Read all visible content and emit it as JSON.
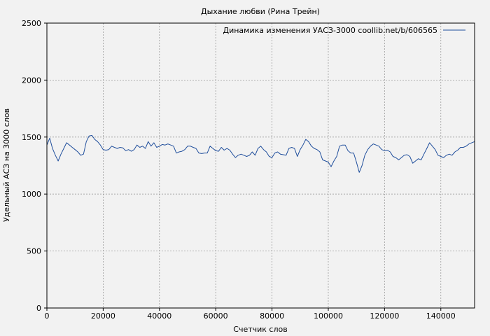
{
  "chart_data": {
    "type": "line",
    "title": "Дыхание любви (Рина Трейн)",
    "xlabel": "Счетчик слов",
    "ylabel": "Удельный АСЗ на 3000 слов",
    "xlim": [
      0,
      152000
    ],
    "ylim": [
      0,
      2500
    ],
    "x_ticks": [
      0,
      20000,
      40000,
      60000,
      80000,
      100000,
      120000,
      140000
    ],
    "x_tick_labels": [
      "0",
      "20000",
      "40000",
      "60000",
      "80000",
      "100000",
      "120000",
      "140000"
    ],
    "y_ticks": [
      0,
      500,
      1000,
      1500,
      2000,
      2500
    ],
    "y_tick_labels": [
      "0",
      "500",
      "1000",
      "1500",
      "2000",
      "2500"
    ],
    "grid": true,
    "legend_position": "top-right",
    "colors": {
      "line": "#1f4e9c",
      "background": "#f2f2f2",
      "plot_background": "#f2f2f2",
      "grid": "#9a9a9a"
    },
    "series": [
      {
        "name": "Динамика изменения УАСЗ-3000 coollib.net/b/606565",
        "x": [
          0,
          1000,
          2000,
          3000,
          4000,
          5000,
          6000,
          7000,
          8000,
          9000,
          10000,
          11000,
          12000,
          13000,
          14000,
          15000,
          16000,
          17000,
          18000,
          19000,
          20000,
          21000,
          22000,
          23000,
          24000,
          25000,
          26000,
          27000,
          28000,
          29000,
          30000,
          31000,
          32000,
          33000,
          34000,
          35000,
          36000,
          37000,
          38000,
          39000,
          40000,
          41000,
          42000,
          43000,
          44000,
          45000,
          46000,
          47000,
          48000,
          49000,
          50000,
          51000,
          52000,
          53000,
          54000,
          55000,
          56000,
          57000,
          58000,
          59000,
          60000,
          61000,
          62000,
          63000,
          64000,
          65000,
          66000,
          67000,
          68000,
          69000,
          70000,
          71000,
          72000,
          73000,
          74000,
          75000,
          76000,
          77000,
          78000,
          79000,
          80000,
          81000,
          82000,
          83000,
          84000,
          85000,
          86000,
          87000,
          88000,
          89000,
          90000,
          91000,
          92000,
          93000,
          94000,
          95000,
          96000,
          97000,
          98000,
          99000,
          100000,
          101000,
          102000,
          103000,
          104000,
          105000,
          106000,
          107000,
          108000,
          109000,
          110000,
          111000,
          112000,
          113000,
          114000,
          115000,
          116000,
          117000,
          118000,
          119000,
          120000,
          121000,
          122000,
          123000,
          124000,
          125000,
          126000,
          127000,
          128000,
          129000,
          130000,
          131000,
          132000,
          133000,
          134000,
          135000,
          136000,
          137000,
          138000,
          139000,
          140000,
          141000,
          142000,
          143000,
          144000,
          145000,
          146000,
          147000,
          148000,
          149000,
          150000,
          151000,
          152000
        ],
        "y": [
          1430,
          1490,
          1400,
          1340,
          1290,
          1350,
          1400,
          1450,
          1430,
          1410,
          1390,
          1370,
          1340,
          1350,
          1460,
          1510,
          1515,
          1480,
          1460,
          1430,
          1390,
          1385,
          1390,
          1420,
          1410,
          1400,
          1410,
          1405,
          1380,
          1390,
          1375,
          1390,
          1430,
          1410,
          1420,
          1400,
          1460,
          1420,
          1450,
          1410,
          1420,
          1435,
          1430,
          1440,
          1430,
          1420,
          1360,
          1370,
          1375,
          1390,
          1420,
          1420,
          1410,
          1400,
          1360,
          1355,
          1360,
          1360,
          1420,
          1400,
          1380,
          1375,
          1410,
          1385,
          1400,
          1385,
          1350,
          1320,
          1340,
          1350,
          1340,
          1330,
          1340,
          1370,
          1340,
          1400,
          1420,
          1390,
          1370,
          1330,
          1320,
          1360,
          1370,
          1350,
          1345,
          1340,
          1400,
          1410,
          1400,
          1330,
          1390,
          1430,
          1480,
          1460,
          1420,
          1400,
          1390,
          1370,
          1300,
          1290,
          1280,
          1240,
          1290,
          1330,
          1420,
          1430,
          1430,
          1380,
          1360,
          1360,
          1280,
          1190,
          1250,
          1340,
          1390,
          1420,
          1440,
          1430,
          1420,
          1390,
          1380,
          1385,
          1370,
          1330,
          1320,
          1300,
          1320,
          1340,
          1345,
          1330,
          1270,
          1290,
          1310,
          1300,
          1350,
          1400,
          1450,
          1420,
          1390,
          1340,
          1330,
          1320,
          1340,
          1350,
          1340,
          1370,
          1385,
          1410,
          1410,
          1420,
          1440,
          1450,
          1460
        ]
      }
    ]
  }
}
